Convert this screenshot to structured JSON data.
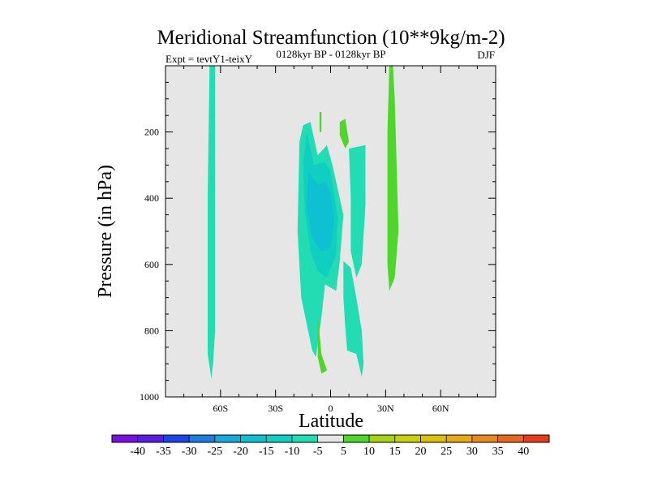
{
  "chart_data": {
    "type": "contour",
    "title": "Meridional Streamfunction (10**9kg/m-2)",
    "subtitle": "0128kyr BP - 0128kyr BP",
    "left_label": "Expt = tevtY1-teixY",
    "right_label": "DJF",
    "xlabel": "Latitude",
    "ylabel": "Pressure (in hPa)",
    "xlim": [
      -90,
      90
    ],
    "ylim": [
      0,
      1000
    ],
    "y_inverted": true,
    "x_ticks": [
      {
        "value": -60,
        "label": "60S"
      },
      {
        "value": -30,
        "label": "30S"
      },
      {
        "value": 0,
        "label": "0"
      },
      {
        "value": 30,
        "label": "30N"
      },
      {
        "value": 60,
        "label": "60N"
      }
    ],
    "y_ticks": [
      {
        "value": 200,
        "label": "200"
      },
      {
        "value": 400,
        "label": "400"
      },
      {
        "value": 600,
        "label": "600"
      },
      {
        "value": 800,
        "label": "800"
      },
      {
        "value": 1000,
        "label": "1000"
      }
    ],
    "background_color": "#e6e6e6",
    "colorbar": {
      "levels": [
        {
          "label": "-40",
          "color": "#7a0fe0"
        },
        {
          "label": "-35",
          "color": "#5a1ee0"
        },
        {
          "label": "-30",
          "color": "#1f45e6"
        },
        {
          "label": "-25",
          "color": "#1e7ddc"
        },
        {
          "label": "-20",
          "color": "#19a8dc"
        },
        {
          "label": "-15",
          "color": "#0fbfd2"
        },
        {
          "label": "-10",
          "color": "#10cfc0"
        },
        {
          "label": "-5",
          "color": "#22ddb4"
        },
        {
          "label": "5",
          "color": "#e6e6e6"
        },
        {
          "label": "10",
          "color": "#4fd62a"
        },
        {
          "label": "15",
          "color": "#a5d318"
        },
        {
          "label": "20",
          "color": "#c8ce10"
        },
        {
          "label": "25",
          "color": "#dcc010"
        },
        {
          "label": "30",
          "color": "#e6a816"
        },
        {
          "label": "35",
          "color": "#e68a1e"
        },
        {
          "label": "40",
          "color": "#e66a1e"
        }
      ],
      "end_color": "#e63c1e"
    },
    "regions": [
      {
        "name": "thin-column-60s",
        "color": "#22ddb4",
        "points": [
          [
            -66,
            0
          ],
          [
            -63,
            0
          ],
          [
            -63,
            400
          ],
          [
            -63,
            800
          ],
          [
            -64,
            895
          ],
          [
            -65,
            945
          ],
          [
            -67,
            870
          ],
          [
            -67,
            400
          ]
        ]
      },
      {
        "name": "outer-negative-cell",
        "color": "#22ddb4",
        "points": [
          [
            -15,
            180
          ],
          [
            -11,
            170
          ],
          [
            -7,
            270
          ],
          [
            -2,
            240
          ],
          [
            1,
            300
          ],
          [
            7,
            450
          ],
          [
            5,
            590
          ],
          [
            3,
            680
          ],
          [
            -3,
            660
          ],
          [
            -5,
            760
          ],
          [
            -8,
            880
          ],
          [
            -10,
            860
          ],
          [
            -13,
            780
          ],
          [
            -16,
            700
          ],
          [
            -18,
            500
          ],
          [
            -17,
            230
          ]
        ]
      },
      {
        "name": "inner-negative-cell",
        "color": "#10cfc0",
        "points": [
          [
            -13,
            200
          ],
          [
            -9,
            300
          ],
          [
            -3,
            290
          ],
          [
            0,
            320
          ],
          [
            4,
            460
          ],
          [
            3,
            570
          ],
          [
            -2,
            640
          ],
          [
            -7,
            620
          ],
          [
            -11,
            560
          ],
          [
            -14,
            440
          ],
          [
            -15,
            290
          ]
        ]
      },
      {
        "name": "core-negative-cell",
        "color": "#0fbfd2",
        "points": [
          [
            -12,
            320
          ],
          [
            -7,
            360
          ],
          [
            -3,
            350
          ],
          [
            0,
            380
          ],
          [
            2,
            470
          ],
          [
            0,
            550
          ],
          [
            -5,
            560
          ],
          [
            -10,
            520
          ],
          [
            -13,
            430
          ]
        ]
      },
      {
        "name": "south-deep-positive",
        "color": "#4fd62a",
        "points": [
          [
            -7,
            750
          ],
          [
            -5,
            870
          ],
          [
            -2,
            920
          ],
          [
            -5,
            930
          ],
          [
            -7,
            880
          ]
        ]
      },
      {
        "name": "south-center-negative",
        "color": "#22ddb4",
        "points": [
          [
            7,
            590
          ],
          [
            11,
            610
          ],
          [
            14,
            700
          ],
          [
            17,
            800
          ],
          [
            18,
            900
          ],
          [
            17,
            940
          ],
          [
            14,
            870
          ],
          [
            9,
            860
          ],
          [
            8,
            790
          ],
          [
            7,
            700
          ]
        ]
      },
      {
        "name": "upper-positive-blob",
        "color": "#4fd62a",
        "points": [
          [
            5,
            170
          ],
          [
            8,
            160
          ],
          [
            10,
            230
          ],
          [
            8,
            250
          ],
          [
            5,
            210
          ]
        ]
      },
      {
        "name": "upper-strip-positive",
        "color": "#4fd62a",
        "points": [
          [
            -6,
            140
          ],
          [
            -5,
            140
          ],
          [
            -5,
            200
          ],
          [
            -6,
            200
          ]
        ]
      },
      {
        "name": "deep-mid-negative",
        "color": "#22ddb4",
        "points": [
          [
            10,
            250
          ],
          [
            19,
            240
          ],
          [
            19,
            420
          ],
          [
            17,
            600
          ],
          [
            14,
            640
          ],
          [
            11,
            560
          ],
          [
            11,
            400
          ]
        ]
      },
      {
        "name": "subtropical-positive-column",
        "color": "#4fd62a",
        "points": [
          [
            32,
            0
          ],
          [
            34,
            0
          ],
          [
            35,
            100
          ],
          [
            37,
            500
          ],
          [
            35,
            640
          ],
          [
            32,
            680
          ],
          [
            31,
            600
          ],
          [
            31,
            200
          ]
        ]
      }
    ]
  }
}
